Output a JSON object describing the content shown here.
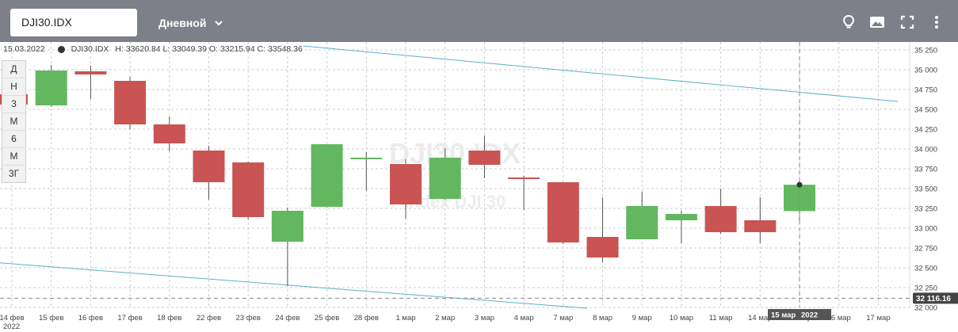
{
  "toolbar": {
    "symbol": "DJI30.IDX",
    "period": "Дневной",
    "icons": [
      "lightbulb-icon",
      "image-icon",
      "fullscreen-icon",
      "more-vertical-icon"
    ]
  },
  "info": {
    "date": "15.03.2022",
    "symbol": "DJI30.IDX",
    "ohlc": "H: 33620.84 L: 33049.39 O: 33215.94 C: 33548.36"
  },
  "timeframes": [
    "Д",
    "Н",
    "3",
    "М",
    "6",
    "М",
    "3Г"
  ],
  "watermark": {
    "title": "DJI30.IDX",
    "subtitle": "Index DJI 30"
  },
  "crosshair": {
    "date_label": "15 мар",
    "year_label": "2022",
    "price_label": "32 116.16"
  },
  "colors": {
    "up": "#63b75f",
    "down": "#c95453",
    "trendline": "#5fb0c8",
    "grid": "#cccccc",
    "topbar": "#7d8088"
  },
  "chart_data": {
    "type": "candlestick",
    "year_label": "2022",
    "ylim": [
      32000,
      35250
    ],
    "yticks": [
      32000,
      32250,
      32500,
      32750,
      33000,
      33250,
      33500,
      33750,
      34000,
      34250,
      34500,
      34750,
      35000,
      35250
    ],
    "ytick_labels": [
      "32 000",
      "32 250",
      "32 500",
      "32 750",
      "33 000",
      "33 250",
      "33 500",
      "33 750",
      "34 000",
      "34 250",
      "34 500",
      "34 750",
      "35 000",
      "35 250"
    ],
    "categories": [
      "14 фев",
      "15 фев",
      "16 фев",
      "17 фев",
      "18 фев",
      "22 фев",
      "23 фев",
      "24 фев",
      "25 фев",
      "28 фев",
      "1 мар",
      "2 мар",
      "3 мар",
      "4 мар",
      "7 мар",
      "8 мар",
      "9 мар",
      "10 мар",
      "11 мар",
      "14 мар",
      "15 мар",
      "16 мар",
      "17 мар"
    ],
    "candles": [
      {
        "date": "14 фев",
        "open": 34690,
        "high": 34760,
        "low": 34480,
        "close": 34560
      },
      {
        "date": "15 фев",
        "open": 34550,
        "high": 35060,
        "low": 34530,
        "close": 34990
      },
      {
        "date": "16 фев",
        "open": 34980,
        "high": 35050,
        "low": 34630,
        "close": 34940
      },
      {
        "date": "17 фев",
        "open": 34860,
        "high": 34910,
        "low": 34250,
        "close": 34310
      },
      {
        "date": "18 фев",
        "open": 34310,
        "high": 34410,
        "low": 33970,
        "close": 34070
      },
      {
        "date": "22 фев",
        "open": 33980,
        "high": 34040,
        "low": 33360,
        "close": 33580
      },
      {
        "date": "23 фев",
        "open": 33830,
        "high": 33840,
        "low": 33110,
        "close": 33140
      },
      {
        "date": "24 фев",
        "open": 32830,
        "high": 33260,
        "low": 32270,
        "close": 33220
      },
      {
        "date": "25 фев",
        "open": 33270,
        "high": 34060,
        "low": 33260,
        "close": 34060
      },
      {
        "date": "28 фев",
        "open": 33870,
        "high": 33960,
        "low": 33470,
        "close": 33890
      },
      {
        "date": "1 мар",
        "open": 33810,
        "high": 33870,
        "low": 33120,
        "close": 33300
      },
      {
        "date": "2 мар",
        "open": 33370,
        "high": 34010,
        "low": 33360,
        "close": 33890
      },
      {
        "date": "3 мар",
        "open": 33980,
        "high": 34170,
        "low": 33630,
        "close": 33800
      },
      {
        "date": "4 мар",
        "open": 33640,
        "high": 33660,
        "low": 33230,
        "close": 33620
      },
      {
        "date": "7 мар",
        "open": 33580,
        "high": 33580,
        "low": 32800,
        "close": 32820
      },
      {
        "date": "8 мар",
        "open": 32890,
        "high": 33390,
        "low": 32570,
        "close": 32630
      },
      {
        "date": "9 мар",
        "open": 32860,
        "high": 33460,
        "low": 32860,
        "close": 33280
      },
      {
        "date": "10 мар",
        "open": 33100,
        "high": 33220,
        "low": 32810,
        "close": 33180
      },
      {
        "date": "11 мар",
        "open": 33280,
        "high": 33500,
        "low": 32930,
        "close": 32950
      },
      {
        "date": "14 мар",
        "open": 33100,
        "high": 33390,
        "low": 32810,
        "close": 32950
      },
      {
        "date": "15 мар",
        "open": 33215.94,
        "high": 33620.84,
        "low": 33049.39,
        "close": 33548.36
      }
    ],
    "trendlines": [
      {
        "from": {
          "index": 7.4,
          "price": 35300
        },
        "to": {
          "index": 22.5,
          "price": 34600
        }
      },
      {
        "from": {
          "index": -0.5,
          "price": 32570
        },
        "to": {
          "index": 14.6,
          "price": 31990
        }
      }
    ],
    "crosshair": {
      "index": 20,
      "price": 32116.16
    }
  }
}
